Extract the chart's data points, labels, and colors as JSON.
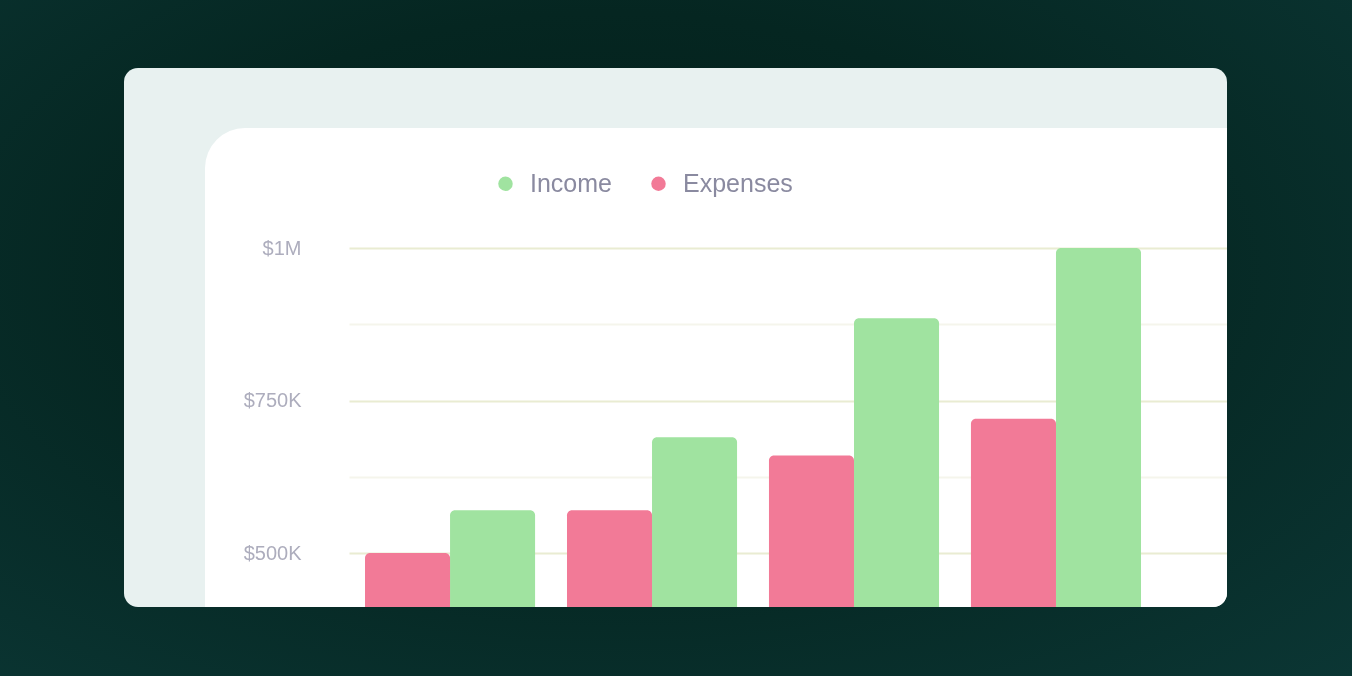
{
  "chart_data": {
    "type": "bar",
    "categories": [
      null,
      null,
      null,
      null
    ],
    "series": [
      {
        "name": "Income",
        "color": "#a0e3a0",
        "values": [
          570000,
          690000,
          885000,
          1000000
        ]
      },
      {
        "name": "Expenses",
        "color": "#f27a97",
        "values": [
          500000,
          570000,
          660000,
          720000
        ]
      }
    ],
    "ylim": [
      410000,
      1000000
    ],
    "yticks": [
      {
        "value": 500000,
        "label": "$500K"
      },
      {
        "value": 625000,
        "label": null
      },
      {
        "value": 750000,
        "label": "$750K"
      },
      {
        "value": 875000,
        "label": null
      },
      {
        "value": 1000000,
        "label": "$1M"
      }
    ],
    "grid": "y",
    "legend": "top"
  }
}
